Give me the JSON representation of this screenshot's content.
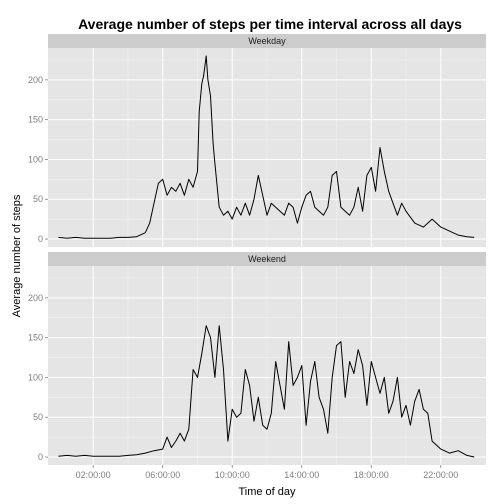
{
  "chart_data": {
    "type": "line",
    "title": "Average number of steps per time interval across all days",
    "xlabel": "Time of day",
    "ylabel": "Average number of steps",
    "x_ticks": [
      {
        "label": "02:00:00",
        "hours": 2
      },
      {
        "label": "06:00:00",
        "hours": 6
      },
      {
        "label": "10:00:00",
        "hours": 10
      },
      {
        "label": "14:00:00",
        "hours": 14
      },
      {
        "label": "18:00:00",
        "hours": 18
      },
      {
        "label": "22:00:00",
        "hours": 22
      }
    ],
    "xlim_hours": [
      -0.6,
      24.6
    ],
    "ylim": [
      -10,
      240
    ],
    "y_ticks": [
      0,
      50,
      100,
      150,
      200
    ],
    "grid": true,
    "panels": [
      {
        "label": "Weekday",
        "x_hours": [
          0,
          0.5,
          1,
          1.5,
          2,
          2.5,
          3,
          3.5,
          4,
          4.5,
          5,
          5.25,
          5.5,
          5.75,
          6,
          6.25,
          6.5,
          6.75,
          7,
          7.25,
          7.5,
          7.75,
          8,
          8.1,
          8.25,
          8.35,
          8.5,
          8.6,
          8.75,
          8.9,
          9,
          9.25,
          9.5,
          9.75,
          10,
          10.25,
          10.5,
          10.75,
          11,
          11.25,
          11.5,
          11.75,
          12,
          12.25,
          12.5,
          12.75,
          13,
          13.25,
          13.5,
          13.75,
          14,
          14.25,
          14.5,
          14.75,
          15,
          15.25,
          15.5,
          15.75,
          16,
          16.25,
          16.5,
          16.75,
          17,
          17.25,
          17.5,
          17.75,
          18,
          18.25,
          18.5,
          18.75,
          19,
          19.25,
          19.5,
          19.75,
          20,
          20.5,
          21,
          21.5,
          22,
          22.5,
          23,
          23.5,
          23.92
        ],
        "y": [
          2,
          1,
          2,
          1,
          1,
          1,
          1,
          2,
          2,
          3,
          8,
          20,
          45,
          70,
          75,
          55,
          65,
          60,
          70,
          55,
          75,
          65,
          85,
          160,
          195,
          205,
          230,
          200,
          180,
          120,
          95,
          40,
          30,
          35,
          25,
          40,
          30,
          45,
          30,
          50,
          80,
          55,
          30,
          45,
          40,
          35,
          30,
          45,
          40,
          20,
          40,
          55,
          60,
          40,
          35,
          30,
          40,
          80,
          85,
          40,
          35,
          30,
          40,
          65,
          35,
          80,
          90,
          60,
          115,
          85,
          60,
          45,
          30,
          45,
          35,
          20,
          15,
          25,
          15,
          10,
          5,
          3,
          2
        ]
      },
      {
        "label": "Weekend",
        "x_hours": [
          0,
          0.5,
          1,
          1.5,
          2,
          2.5,
          3,
          3.5,
          4,
          4.5,
          5,
          5.5,
          6,
          6.25,
          6.5,
          6.75,
          7,
          7.25,
          7.5,
          7.75,
          8,
          8.25,
          8.5,
          8.75,
          9,
          9.25,
          9.5,
          9.75,
          10,
          10.25,
          10.5,
          10.75,
          11,
          11.25,
          11.5,
          11.75,
          12,
          12.25,
          12.5,
          12.75,
          13,
          13.25,
          13.5,
          13.75,
          14,
          14.25,
          14.5,
          14.75,
          15,
          15.25,
          15.5,
          15.75,
          16,
          16.25,
          16.5,
          16.75,
          17,
          17.25,
          17.5,
          17.75,
          18,
          18.25,
          18.5,
          18.75,
          19,
          19.25,
          19.5,
          19.75,
          20,
          20.25,
          20.5,
          20.75,
          21,
          21.25,
          21.5,
          22,
          22.5,
          23,
          23.5,
          23.92
        ],
        "y": [
          1,
          2,
          1,
          2,
          1,
          1,
          1,
          1,
          2,
          3,
          5,
          8,
          10,
          25,
          12,
          20,
          30,
          20,
          35,
          110,
          100,
          130,
          165,
          150,
          100,
          165,
          110,
          20,
          60,
          50,
          55,
          110,
          90,
          45,
          75,
          40,
          35,
          55,
          120,
          90,
          60,
          145,
          90,
          100,
          115,
          40,
          95,
          120,
          75,
          60,
          30,
          100,
          140,
          145,
          75,
          120,
          105,
          135,
          115,
          65,
          120,
          100,
          80,
          100,
          55,
          70,
          100,
          50,
          65,
          40,
          70,
          85,
          60,
          55,
          20,
          10,
          5,
          8,
          2,
          0
        ]
      }
    ]
  }
}
